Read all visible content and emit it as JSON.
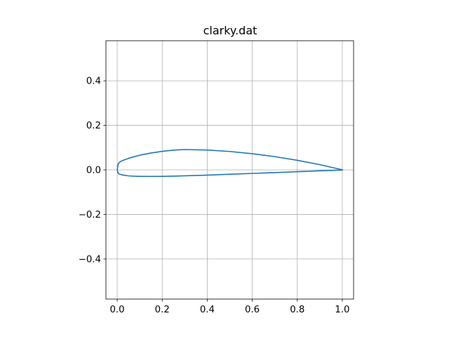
{
  "chart_data": {
    "type": "line",
    "title": "clarky.dat",
    "xlabel": "",
    "ylabel": "",
    "xlim": [
      -0.05,
      1.05
    ],
    "ylim": [
      -0.58,
      0.58
    ],
    "grid": true,
    "aspect": "equal",
    "x_ticks": [
      0.0,
      0.2,
      0.4,
      0.6,
      0.8,
      1.0
    ],
    "x_tick_labels": [
      "0.0",
      "0.2",
      "0.4",
      "0.6",
      "0.8",
      "1.0"
    ],
    "y_ticks": [
      -0.4,
      -0.2,
      0.0,
      0.2,
      0.4
    ],
    "y_tick_labels": [
      "−0.4",
      "−0.2",
      "0.0",
      "0.2",
      "0.4"
    ],
    "series": [
      {
        "name": "clarky.dat",
        "color": "#1f77b4",
        "x": [
          1.0,
          0.9,
          0.8,
          0.7,
          0.6,
          0.5,
          0.4,
          0.3,
          0.25,
          0.2,
          0.15,
          0.1,
          0.075,
          0.05,
          0.025,
          0.0125,
          0.005,
          0.0,
          0.005,
          0.0125,
          0.025,
          0.05,
          0.075,
          0.1,
          0.15,
          0.2,
          0.3,
          0.4,
          0.5,
          0.6,
          0.7,
          0.8,
          0.9,
          1.0
        ],
        "y": [
          0.0006,
          0.0237,
          0.0431,
          0.0595,
          0.0727,
          0.0827,
          0.0893,
          0.0914,
          0.0889,
          0.0834,
          0.0758,
          0.0659,
          0.0593,
          0.0518,
          0.0427,
          0.0362,
          0.0287,
          0.0,
          -0.0158,
          -0.0196,
          -0.0231,
          -0.0268,
          -0.0283,
          -0.0289,
          -0.0292,
          -0.0288,
          -0.0267,
          -0.0234,
          -0.0196,
          -0.0158,
          -0.0119,
          -0.008,
          -0.004,
          -0.0006
        ]
      }
    ]
  }
}
